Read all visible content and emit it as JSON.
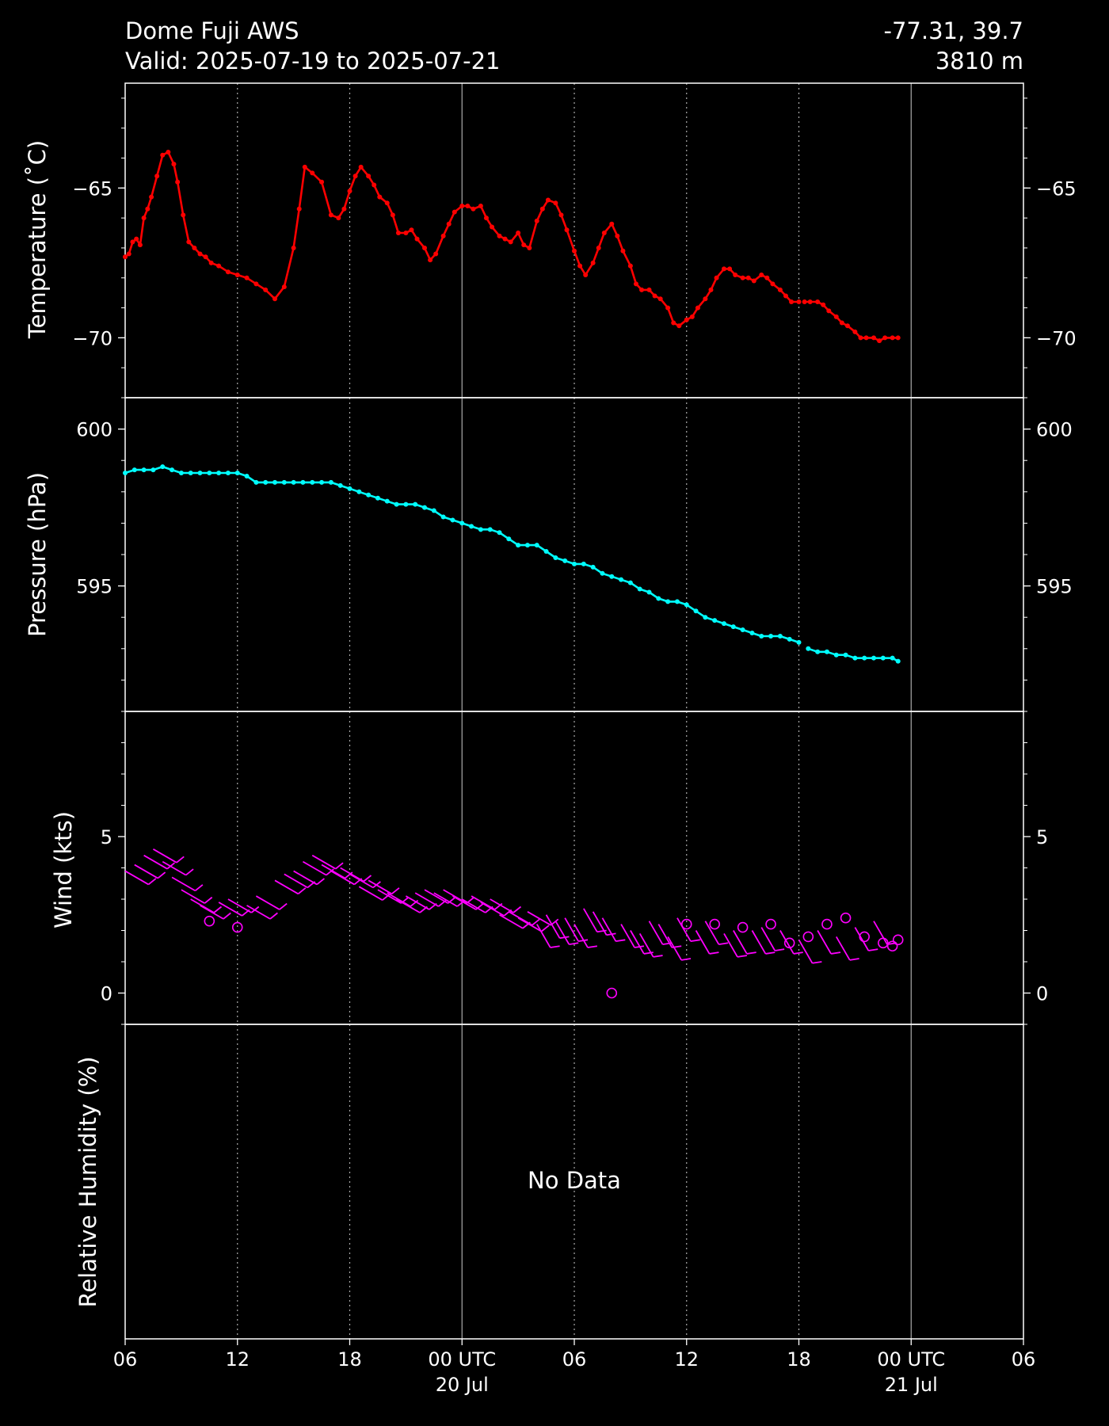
{
  "header": {
    "station": "Dome Fuji AWS",
    "valid": "Valid: 2025-07-19 to 2025-07-21",
    "coords": "-77.31, 39.7",
    "elevation": "3810 m"
  },
  "colors": {
    "background": "#000000",
    "axes": "#ffffff",
    "temperature": "#ff0000",
    "pressure": "#00ffff",
    "wind": "#ff00ff",
    "grid": "#aaaaaa"
  },
  "chart_data": [
    {
      "type": "line",
      "id": "temperature",
      "ylabel": "Temperature ($^\\circ$C)",
      "ylim": [
        -72,
        -61.5
      ],
      "ticks": [
        -70,
        -65
      ],
      "tick_labels": [
        "−70",
        "−65"
      ],
      "x_unit": "hours since 2025-07-19 00 UTC",
      "series": [
        {
          "x": [
            6.0,
            6.2,
            6.4,
            6.6,
            6.8,
            7.0,
            7.2,
            7.4,
            7.7,
            8.0,
            8.3,
            8.6,
            8.8,
            9.1,
            9.4,
            9.7,
            10.0,
            10.3,
            10.6,
            11.0,
            11.5,
            12.0,
            12.5,
            13.0,
            13.5,
            14.0,
            14.5,
            15.0,
            15.3,
            15.6,
            16.0,
            16.5,
            17.0,
            17.4,
            17.7,
            18.0,
            18.3,
            18.6,
            19.0,
            19.3,
            19.6,
            20.0,
            20.3,
            20.6,
            21.0,
            21.3,
            21.6,
            22.0,
            22.3,
            22.6,
            23.0,
            23.3,
            23.6,
            24.0,
            24.3,
            24.6,
            25.0,
            25.3,
            25.6,
            26.0,
            26.3,
            26.6,
            27.0,
            27.3,
            27.6,
            28.0,
            28.3,
            28.6,
            29.0,
            29.3,
            29.6,
            30.0,
            30.3,
            30.6,
            31.0,
            31.3,
            31.6,
            32.0,
            32.3,
            32.6,
            33.0,
            33.3,
            33.6,
            34.0,
            34.3,
            34.6,
            35.0,
            35.3,
            35.6,
            36.0,
            36.3,
            36.6,
            37.0,
            37.3,
            37.6,
            38.0,
            38.3,
            38.6,
            39.0,
            39.3,
            39.6,
            40.0,
            40.3,
            40.6,
            41.0,
            41.3,
            41.6,
            42.0,
            42.3,
            42.6,
            43.0,
            43.3,
            43.6,
            44.0,
            44.3,
            44.6,
            45.0,
            45.3,
            45.6,
            46.0,
            46.3,
            46.6,
            47.0,
            47.3
          ],
          "y": [
            -67.3,
            -67.2,
            -66.8,
            -66.7,
            -66.9,
            -66.0,
            -65.7,
            -65.3,
            -64.6,
            -63.9,
            -63.8,
            -64.2,
            -64.8,
            -65.9,
            -66.8,
            -67.0,
            -67.2,
            -67.3,
            -67.5,
            -67.6,
            -67.8,
            -67.9,
            -68.0,
            -68.2,
            -68.4,
            -68.7,
            -68.3,
            -67.0,
            -65.7,
            -64.3,
            -64.5,
            -64.8,
            -65.9,
            -66.0,
            -65.7,
            -65.1,
            -64.6,
            -64.3,
            -64.6,
            -64.9,
            -65.3,
            -65.5,
            -65.9,
            -66.5,
            -66.5,
            -66.4,
            -66.7,
            -67.0,
            -67.4,
            -67.2,
            -66.6,
            -66.2,
            -65.8,
            -65.6,
            -65.6,
            -65.7,
            -65.6,
            -66.0,
            -66.3,
            -66.6,
            -66.7,
            -66.8,
            -66.5,
            -66.9,
            -67.0,
            -66.1,
            -65.7,
            -65.4,
            -65.5,
            -65.9,
            -66.4,
            -67.1,
            -67.6,
            -67.9,
            -67.5,
            -67.0,
            -66.5,
            -66.2,
            -66.6,
            -67.1,
            -67.6,
            -68.2,
            -68.4,
            -68.4,
            -68.6,
            -68.7,
            -69.0,
            -69.5,
            -69.6,
            -69.4,
            -69.3,
            -69.0,
            -68.7,
            -68.4,
            -68.0,
            -67.7,
            -67.7,
            -67.9,
            -68.0,
            -68.0,
            -68.1,
            -67.9,
            -68.0,
            -68.2,
            -68.4,
            -68.6,
            -68.8,
            -68.8,
            -68.8,
            -68.8,
            -68.8,
            -68.9,
            -69.1,
            -69.3,
            -69.5,
            -69.6,
            -69.8,
            -70.0,
            -70.0,
            -70.0,
            -70.1,
            -70.0,
            -70.0,
            -70.0
          ],
          "gap_after_x": 42.0
        }
      ]
    },
    {
      "type": "line",
      "id": "pressure",
      "ylabel": "Pressure (hPa)",
      "ylim": [
        591,
        601
      ],
      "ticks": [
        595,
        600
      ],
      "tick_labels": [
        "595",
        "600"
      ],
      "x_unit": "hours since 2025-07-19 00 UTC",
      "series": [
        {
          "x": [
            6.0,
            6.5,
            7.0,
            7.5,
            8.0,
            8.5,
            9.0,
            9.5,
            10.0,
            10.5,
            11.0,
            11.5,
            12.0,
            12.5,
            13.0,
            13.5,
            14.0,
            14.5,
            15.0,
            15.5,
            16.0,
            16.5,
            17.0,
            17.5,
            18.0,
            18.5,
            19.0,
            19.5,
            20.0,
            20.5,
            21.0,
            21.5,
            22.0,
            22.5,
            23.0,
            23.5,
            24.0,
            24.5,
            25.0,
            25.5,
            26.0,
            26.5,
            27.0,
            27.5,
            28.0,
            28.5,
            29.0,
            29.5,
            30.0,
            30.5,
            31.0,
            31.5,
            32.0,
            32.5,
            33.0,
            33.5,
            34.0,
            34.5,
            35.0,
            35.5,
            36.0,
            36.5,
            37.0,
            37.5,
            38.0,
            38.5,
            39.0,
            39.5,
            40.0,
            40.5,
            41.0,
            41.5,
            42.0,
            42.5,
            43.0,
            43.5,
            44.0,
            44.5,
            45.0,
            45.5,
            46.0,
            46.5,
            47.0,
            47.3
          ],
          "y": [
            598.6,
            598.7,
            598.7,
            598.7,
            598.8,
            598.7,
            598.6,
            598.6,
            598.6,
            598.6,
            598.6,
            598.6,
            598.6,
            598.5,
            598.3,
            598.3,
            598.3,
            598.3,
            598.3,
            598.3,
            598.3,
            598.3,
            598.3,
            598.2,
            598.1,
            598.0,
            597.9,
            597.8,
            597.7,
            597.6,
            597.6,
            597.6,
            597.5,
            597.4,
            597.2,
            597.1,
            597.0,
            596.9,
            596.8,
            596.8,
            596.7,
            596.5,
            596.3,
            596.3,
            596.3,
            596.1,
            595.9,
            595.8,
            595.7,
            595.7,
            595.6,
            595.4,
            595.3,
            595.2,
            595.1,
            594.9,
            594.8,
            594.6,
            594.5,
            594.5,
            594.4,
            594.2,
            594.0,
            593.9,
            593.8,
            593.7,
            593.6,
            593.5,
            593.4,
            593.4,
            593.4,
            593.3,
            593.2,
            593.0,
            592.9,
            592.9,
            592.8,
            592.8,
            592.7,
            592.7,
            592.7,
            592.7,
            592.7,
            592.6
          ],
          "gap_after_x": 42.0
        }
      ]
    },
    {
      "type": "scatter",
      "id": "wind",
      "ylabel": "Wind (kts)",
      "ylim": [
        -1,
        9
      ],
      "ticks": [
        0,
        5
      ],
      "tick_labels": [
        "0",
        "5"
      ],
      "glyph": "wind barbs (calm = open circle)",
      "x_unit": "hours since 2025-07-19 00 UTC",
      "x": [
        6.0,
        6.5,
        7.0,
        7.5,
        8.0,
        8.5,
        9.0,
        9.5,
        10.0,
        10.5,
        11.0,
        11.5,
        12.0,
        12.5,
        13.0,
        14.0,
        14.5,
        15.0,
        15.5,
        16.0,
        16.5,
        17.0,
        17.5,
        18.0,
        18.5,
        19.0,
        19.5,
        20.0,
        20.5,
        21.0,
        21.5,
        22.0,
        22.5,
        23.0,
        23.5,
        24.0,
        24.5,
        25.0,
        25.5,
        26.0,
        26.5,
        27.0,
        27.5,
        28.0,
        28.5,
        29.0,
        29.5,
        30.0,
        30.5,
        31.0,
        31.5,
        32.0,
        32.5,
        33.0,
        33.5,
        34.0,
        34.5,
        35.0,
        35.5,
        36.0,
        36.5,
        37.0,
        37.5,
        38.0,
        38.5,
        39.0,
        39.5,
        40.0,
        40.5,
        41.0,
        41.5,
        42.0,
        42.5,
        43.0,
        43.5,
        44.0,
        44.5,
        45.0,
        45.5,
        46.0,
        46.5,
        47.0,
        47.3
      ],
      "y": [
        3.9,
        4.1,
        4.4,
        4.6,
        4.2,
        3.7,
        3.3,
        3.0,
        2.8,
        2.3,
        2.9,
        3.0,
        2.1,
        2.8,
        3.1,
        3.6,
        3.8,
        3.9,
        4.2,
        4.4,
        4.1,
        3.9,
        4.0,
        3.8,
        3.4,
        3.6,
        3.3,
        3.2,
        3.0,
        3.1,
        3.2,
        3.3,
        3.2,
        3.3,
        3.1,
        3.0,
        3.1,
        2.9,
        3.0,
        2.5,
        2.6,
        2.4,
        2.6,
        2.2,
        2.5,
        2.3,
        2.4,
        2.2,
        2.7,
        2.6,
        2.4,
        0.0,
        2.2,
        2.0,
        1.9,
        2.3,
        2.2,
        1.8,
        2.4,
        2.2,
        2.0,
        2.3,
        2.2,
        1.9,
        2.0,
        2.1,
        2.0,
        2.1,
        2.2,
        2.0,
        1.6,
        1.7,
        1.8,
        2.0,
        2.2,
        1.8,
        2.4,
        2.1,
        1.8,
        2.3,
        1.6,
        1.5,
        1.7
      ],
      "calm": [
        false,
        false,
        false,
        false,
        false,
        false,
        false,
        false,
        false,
        true,
        false,
        false,
        true,
        false,
        false,
        false,
        false,
        false,
        false,
        false,
        false,
        false,
        false,
        false,
        false,
        false,
        false,
        false,
        false,
        false,
        false,
        false,
        false,
        false,
        false,
        false,
        false,
        false,
        false,
        false,
        false,
        false,
        false,
        false,
        false,
        false,
        false,
        false,
        false,
        false,
        false,
        true,
        false,
        false,
        false,
        false,
        false,
        false,
        false,
        true,
        false,
        false,
        true,
        false,
        false,
        true,
        false,
        false,
        true,
        false,
        true,
        false,
        true,
        false,
        true,
        false,
        true,
        false,
        true,
        false,
        true,
        true,
        true
      ]
    },
    {
      "type": "line",
      "id": "humidity",
      "ylabel": "Relative Humidity (%)",
      "no_data_text": "No Data",
      "series": []
    }
  ],
  "x_axis": {
    "range_hours": [
      6,
      54
    ],
    "major_ticks_hours": [
      6,
      12,
      18,
      24,
      30,
      36,
      42,
      48,
      54
    ],
    "tick_labels": [
      "06",
      "12",
      "18",
      "00 UTC",
      "06",
      "12",
      "18",
      "00 UTC",
      "06"
    ],
    "date_labels": [
      {
        "at": 24,
        "text": "20 Jul"
      },
      {
        "at": 48,
        "text": "21 Jul"
      }
    ],
    "grid": "dotted at 06/12/18, solid at 00 UTC"
  }
}
